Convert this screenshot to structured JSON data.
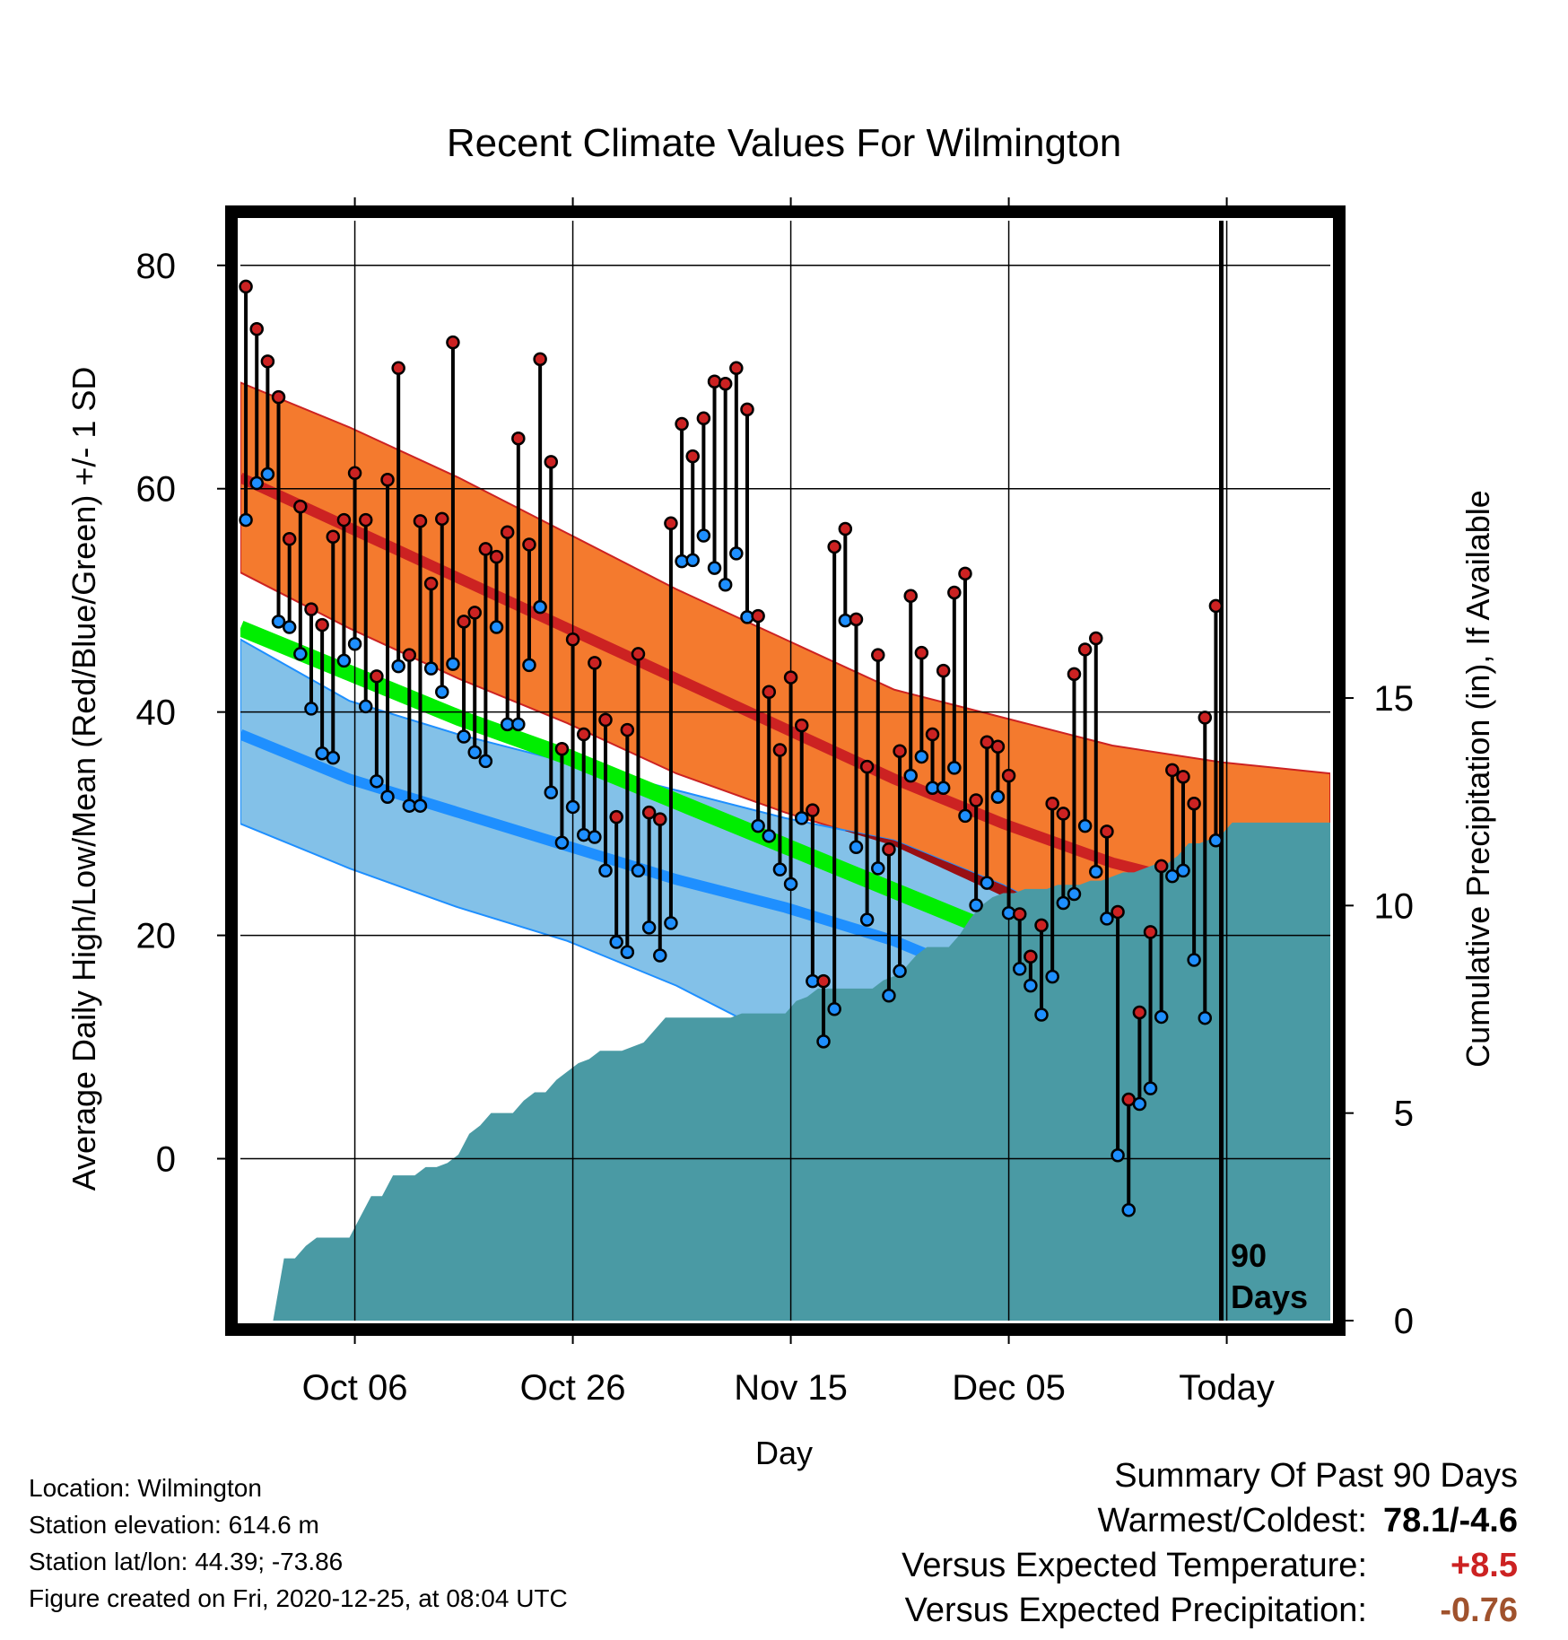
{
  "chart_data": {
    "type": "line",
    "title": "Recent Climate Values For Wilmington",
    "xlabel": "Day",
    "ylabel_left": "Average Daily High/Low/Mean (Red/Blue/Green) +/- 1 SD",
    "ylabel_right": "Cumulative Precipitation (in), If Available",
    "days_marker_label_1": "90",
    "days_marker_label_2": "Days",
    "x_range_days": [
      0,
      100
    ],
    "today_day": 90,
    "ylim_left": [
      -14.5,
      84
    ],
    "ylim_right": [
      0,
      26.5
    ],
    "x_ticks": [
      {
        "day": 10.5,
        "label": "Oct 06"
      },
      {
        "day": 30.5,
        "label": "Oct 26"
      },
      {
        "day": 50.5,
        "label": "Nov 15"
      },
      {
        "day": 70.5,
        "label": "Dec 05"
      },
      {
        "day": 90.5,
        "label": "Today"
      }
    ],
    "y_ticks_left": [
      0,
      20,
      40,
      60,
      80
    ],
    "y_ticks_right": [
      0,
      5,
      10,
      15
    ],
    "normal_high": {
      "days": [
        0,
        10,
        20,
        30,
        40,
        50,
        60,
        70,
        80,
        90,
        100
      ],
      "mean": [
        61,
        56.5,
        52,
        47.5,
        43,
        38.5,
        34,
        30,
        26.5,
        24,
        22.5
      ],
      "upper": [
        69.5,
        65.5,
        61,
        56,
        51,
        46.5,
        42,
        39.5,
        37,
        35.5,
        34.5
      ],
      "lower": [
        52.5,
        47.5,
        43,
        39,
        34.5,
        31,
        28,
        23.5,
        21,
        19,
        18
      ]
    },
    "normal_mean": {
      "days": [
        0,
        10,
        20,
        30,
        40,
        50,
        60,
        70,
        80,
        90,
        100
      ],
      "values": [
        47.5,
        43.5,
        39.5,
        36,
        32,
        28,
        24,
        20,
        16,
        12.5,
        10
      ]
    },
    "normal_low": {
      "days": [
        0,
        10,
        20,
        30,
        40,
        50,
        60,
        70,
        80,
        90,
        100
      ],
      "mean": [
        38,
        34,
        31,
        28,
        25,
        22.5,
        19.5,
        15.5,
        10,
        6,
        3.5
      ],
      "upper": [
        46.5,
        41,
        38,
        35.5,
        33,
        30.5,
        28.5,
        24.5,
        19.5,
        15.5,
        12
      ],
      "lower": [
        30,
        26,
        22.5,
        19.5,
        15.5,
        10.5,
        3.5,
        -3.5,
        -11,
        -14.5,
        -14.5
      ]
    },
    "precip_cumulative": {
      "days": [
        0,
        3,
        4,
        5,
        6,
        7,
        8,
        10,
        11,
        12,
        13,
        14,
        15,
        16,
        17,
        18,
        19,
        20,
        21,
        22,
        23,
        24,
        25,
        26,
        27,
        28,
        29,
        30,
        31,
        32,
        33,
        34,
        35,
        36,
        37,
        38,
        39,
        40,
        41,
        42,
        43,
        44,
        45,
        46,
        47,
        48,
        49,
        50,
        51,
        52,
        53,
        54,
        55,
        56,
        57,
        58,
        59,
        60,
        61,
        62,
        63,
        64,
        65,
        66,
        67,
        68,
        69,
        70,
        71,
        72,
        73,
        74,
        75,
        76,
        77,
        78,
        79,
        80,
        81,
        82,
        83,
        84,
        85,
        86,
        87,
        88,
        89,
        90,
        91,
        95,
        100
      ],
      "values": [
        0,
        0,
        1.5,
        1.5,
        1.8,
        2.0,
        2.0,
        2.0,
        2.5,
        3.0,
        3.0,
        3.5,
        3.5,
        3.5,
        3.7,
        3.7,
        3.8,
        4.0,
        4.5,
        4.7,
        5.0,
        5.0,
        5.0,
        5.3,
        5.5,
        5.5,
        5.8,
        6.0,
        6.2,
        6.3,
        6.5,
        6.5,
        6.5,
        6.6,
        6.7,
        7.0,
        7.3,
        7.3,
        7.3,
        7.3,
        7.3,
        7.3,
        7.3,
        7.4,
        7.4,
        7.4,
        7.4,
        7.4,
        7.7,
        7.8,
        8.0,
        8.0,
        8.0,
        8.0,
        8.0,
        8.0,
        8.2,
        8.3,
        8.5,
        8.8,
        9.0,
        9.0,
        9.0,
        9.3,
        9.7,
        10.0,
        10.2,
        10.3,
        10.3,
        10.4,
        10.4,
        10.4,
        10.5,
        10.5,
        10.5,
        10.6,
        10.6,
        10.7,
        10.8,
        10.8,
        10.9,
        11.0,
        11.0,
        11.2,
        11.5,
        11.5,
        11.6,
        11.7,
        12.0,
        12.0,
        12.0
      ],
      "area_color": "#4a9aa4"
    },
    "daily_highs": [
      78.1,
      74.3,
      71.4,
      68.2,
      55.5,
      58.4,
      49.2,
      47.8,
      55.7,
      57.2,
      61.4,
      57.2,
      43.2,
      60.8,
      70.8,
      45.1,
      57.1,
      51.5,
      57.3,
      73.1,
      48.1,
      48.9,
      54.6,
      53.9,
      56.1,
      64.5,
      55.0,
      71.6,
      62.4,
      36.7,
      46.5,
      38.0,
      44.4,
      39.3,
      30.6,
      38.4,
      45.2,
      31.0,
      30.4,
      56.9,
      65.8,
      62.9,
      66.3,
      69.6,
      69.4,
      70.8,
      67.1,
      48.6,
      41.8,
      36.6,
      43.1,
      38.8,
      31.2,
      15.9,
      54.8,
      56.4,
      48.3,
      35.1,
      45.1,
      27.7,
      36.5,
      50.4,
      45.3,
      38.0,
      43.7,
      50.7,
      52.4,
      32.1,
      37.3,
      36.9,
      34.3,
      21.9,
      18.1,
      20.9,
      31.8,
      30.9,
      43.4,
      45.6,
      46.6,
      29.3,
      22.1,
      5.3,
      13.1,
      20.3,
      26.2,
      34.8,
      34.2,
      31.8,
      39.5,
      49.5
    ],
    "daily_lows": [
      57.2,
      60.5,
      61.3,
      48.1,
      47.6,
      45.2,
      40.3,
      36.3,
      35.9,
      44.6,
      46.1,
      40.5,
      33.8,
      32.4,
      44.1,
      31.6,
      31.6,
      43.9,
      41.8,
      44.3,
      37.8,
      36.4,
      35.6,
      47.6,
      38.9,
      38.9,
      44.2,
      49.4,
      32.8,
      28.3,
      31.5,
      29.0,
      28.8,
      25.8,
      19.4,
      18.5,
      25.8,
      20.7,
      18.2,
      21.1,
      53.5,
      53.6,
      55.8,
      52.9,
      51.4,
      54.2,
      48.5,
      29.8,
      28.9,
      25.9,
      24.6,
      30.5,
      15.9,
      10.5,
      13.4,
      48.2,
      27.9,
      21.4,
      26.0,
      14.6,
      16.8,
      34.3,
      36.0,
      33.2,
      33.2,
      35.0,
      30.7,
      22.7,
      24.7,
      32.4,
      22.0,
      17.0,
      15.5,
      12.9,
      16.3,
      22.9,
      23.7,
      29.8,
      25.7,
      21.5,
      0.3,
      -4.6,
      4.9,
      6.3,
      12.7,
      25.3,
      25.8,
      17.8,
      12.6,
      28.5
    ]
  },
  "footer": {
    "location": "Location: Wilmington",
    "elevation": "Station elevation: 614.6 m",
    "latlon": "Station lat/lon: 44.39; -73.86",
    "created": "Figure created on Fri, 2020-12-25, at 08:04 UTC"
  },
  "summary": {
    "heading": "Summary Of Past 90 Days",
    "warmest_label": "Warmest/Coldest:",
    "warmest_value": "78.1/-4.6",
    "temp_label": "Versus Expected Temperature:",
    "temp_value": "+8.5",
    "temp_color": "#cc2222",
    "precip_label": "Versus Expected Precipitation:",
    "precip_value": "-0.76",
    "precip_color": "#a0522d"
  },
  "colors": {
    "high_band": "#f47a2e",
    "high_line": "#cc2222",
    "low_band": "#83c1e8",
    "low_line": "#1e8fff",
    "mean_line": "#00ee00",
    "overlap": "#990f14",
    "high_dot": "#cc2222",
    "low_dot": "#1e8fff"
  }
}
